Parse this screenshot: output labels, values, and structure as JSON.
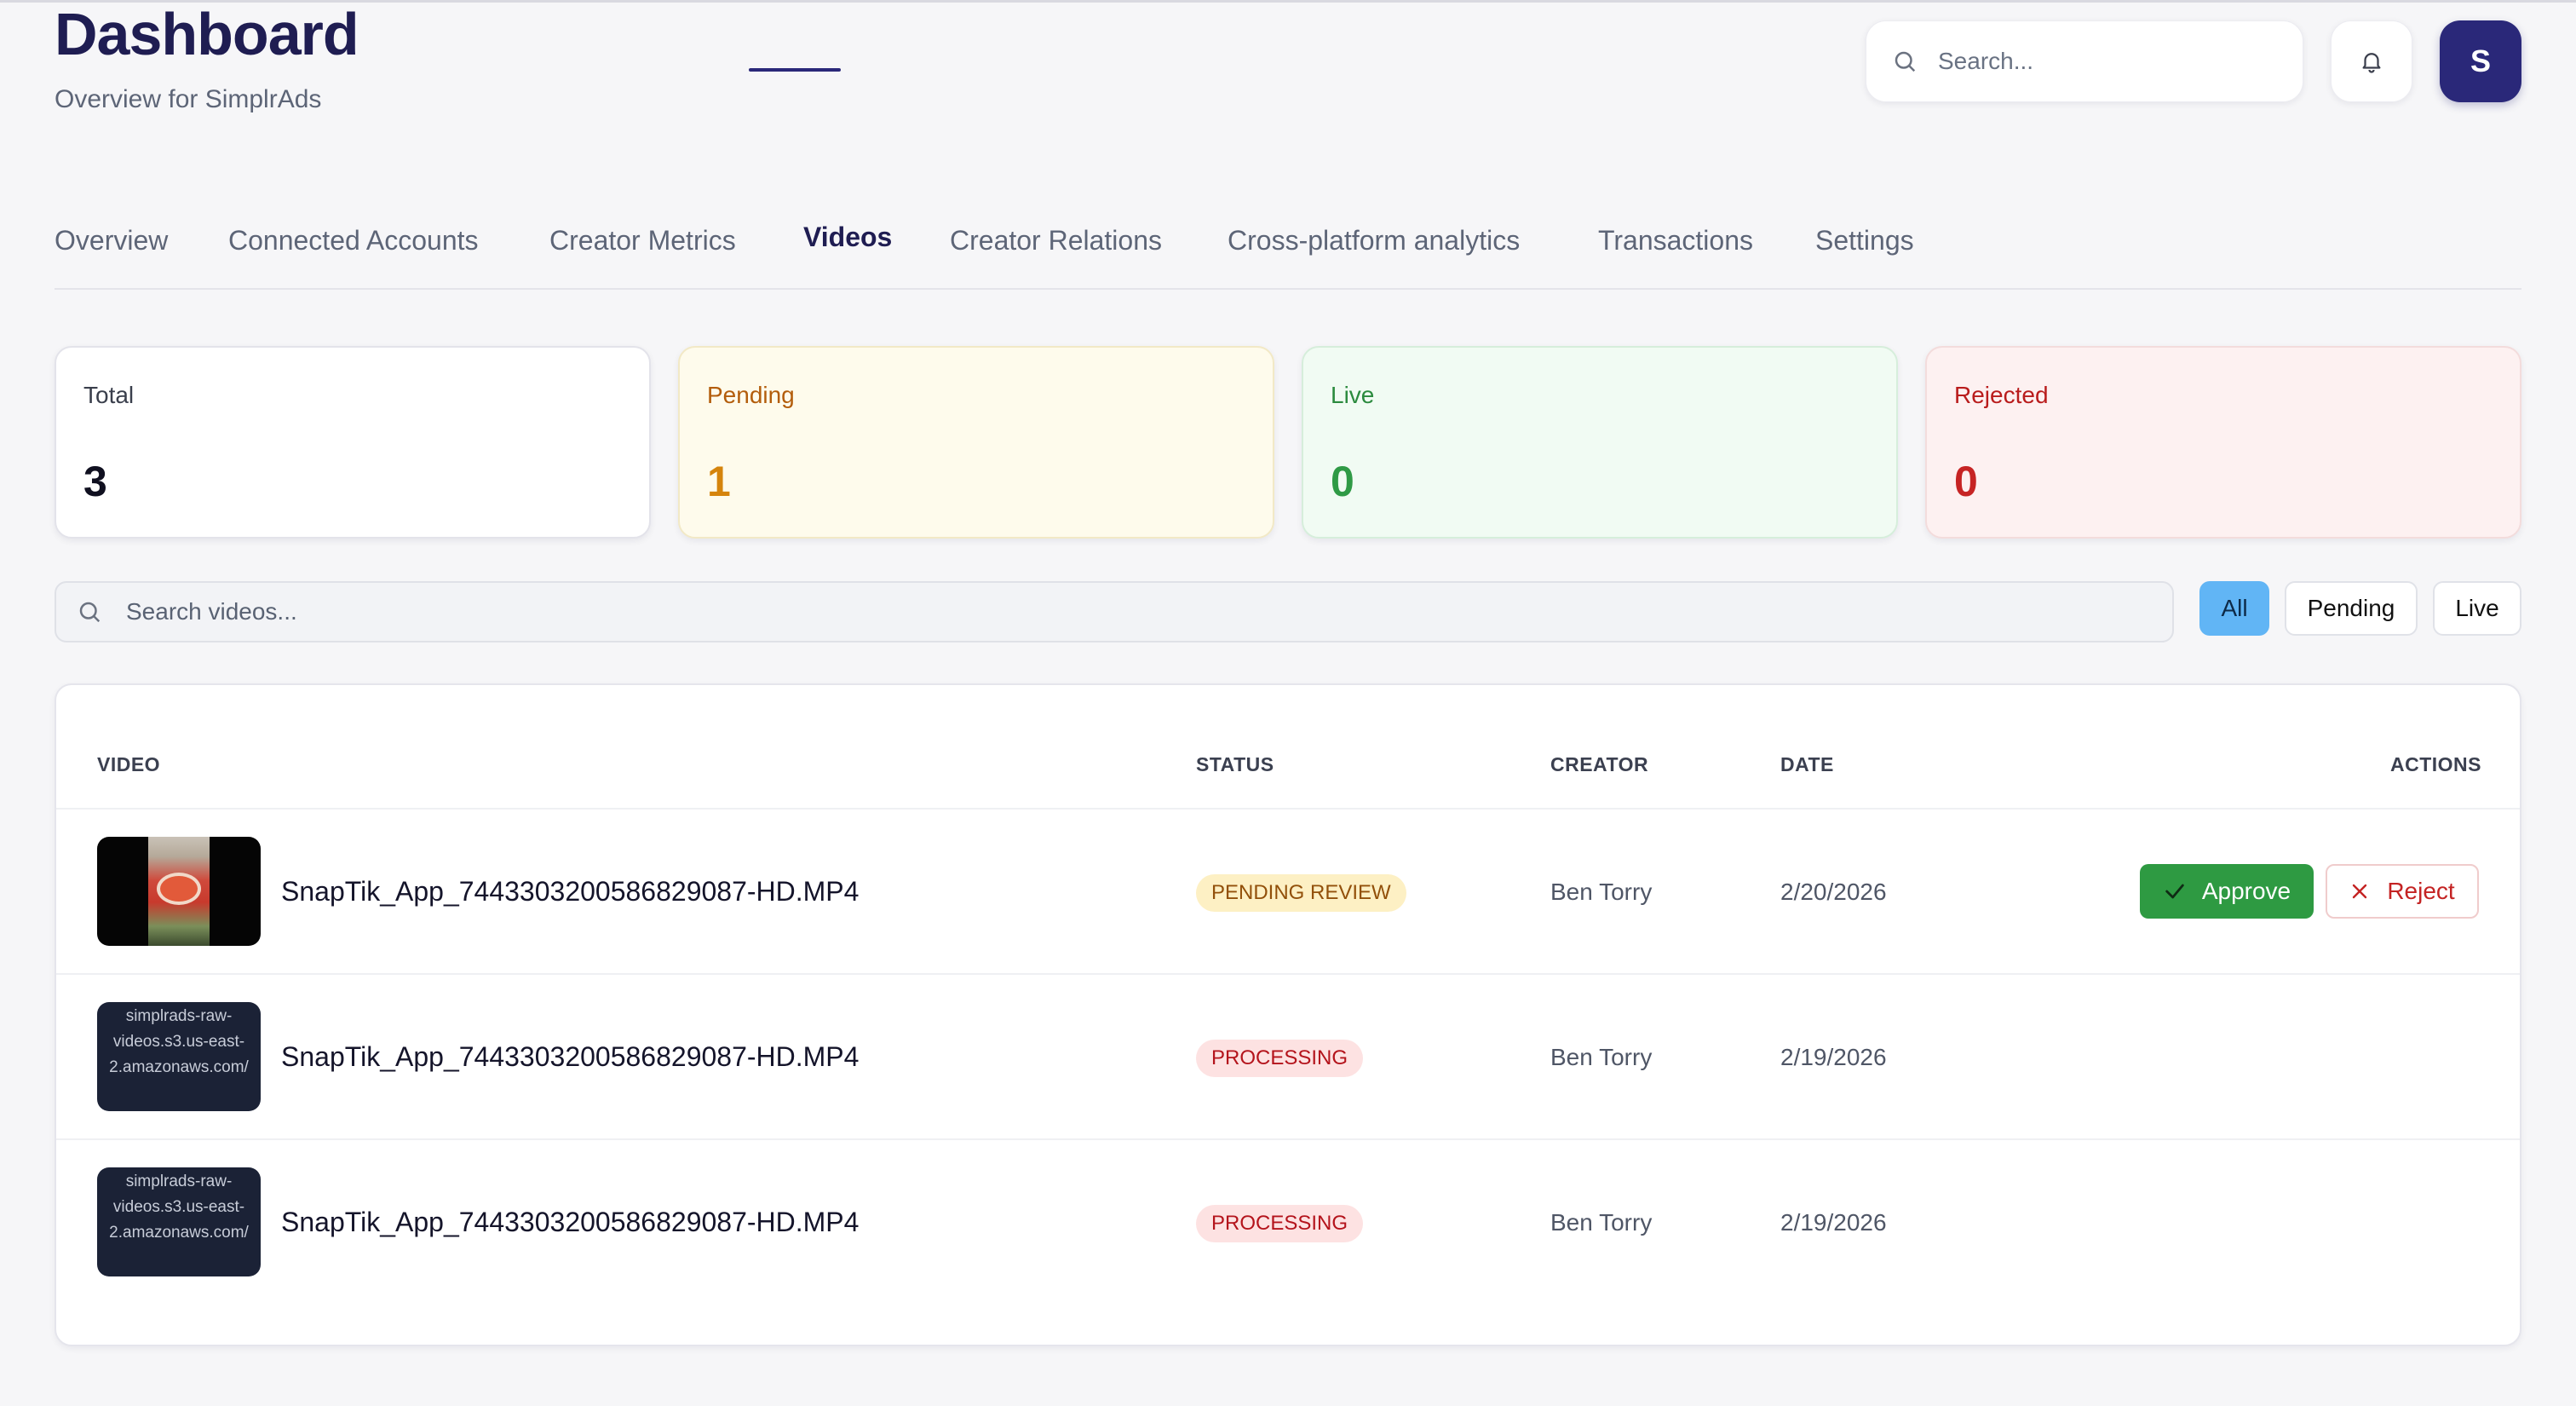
{
  "header": {
    "title": "Dashboard",
    "subtitle": "Overview for SimplrAds",
    "search_placeholder": "Search...",
    "avatar_initial": "S"
  },
  "tabs": [
    {
      "label": "Overview"
    },
    {
      "label": "Connected Accounts"
    },
    {
      "label": "Creator Metrics"
    },
    {
      "label": "Videos",
      "active": true
    },
    {
      "label": "Creator Relations"
    },
    {
      "label": "Cross-platform analytics"
    },
    {
      "label": "Transactions"
    },
    {
      "label": "Settings"
    }
  ],
  "stats": {
    "total": {
      "label": "Total",
      "value": "3"
    },
    "pending": {
      "label": "Pending",
      "value": "1"
    },
    "live": {
      "label": "Live",
      "value": "0"
    },
    "rejected": {
      "label": "Rejected",
      "value": "0"
    }
  },
  "video_search": {
    "placeholder": "Search videos..."
  },
  "filters": {
    "all": "All",
    "pending": "Pending",
    "live": "Live",
    "selected": "All"
  },
  "table": {
    "headers": {
      "video": "VIDEO",
      "status": "STATUS",
      "creator": "CREATOR",
      "date": "DATE",
      "actions": "ACTIONS"
    },
    "rows": [
      {
        "thumbnail_text": "",
        "filename": "SnapTik_App_7443303200586829087-HD.MP4",
        "status": "PENDING REVIEW",
        "creator": "Ben Torry",
        "date": "2/20/2026"
      },
      {
        "thumbnail_text": "simplrads-raw-videos.s3.us-east-2.amazonaws.com/",
        "filename": "SnapTik_App_7443303200586829087-HD.MP4",
        "status": "PROCESSING",
        "creator": "Ben Torry",
        "date": "2/19/2026"
      },
      {
        "thumbnail_text": "simplrads-raw-videos.s3.us-east-2.amazonaws.com/",
        "filename": "SnapTik_App_7443303200586829087-HD.MP4",
        "status": "PROCESSING",
        "creator": "Ben Torry",
        "date": "2/19/2026"
      }
    ],
    "approve_label": "Approve",
    "reject_label": "Reject"
  },
  "colors": {
    "brand": "#2a2879",
    "approve": "#2e9a42",
    "reject": "#c42323",
    "filter_active": "#61b5f5"
  }
}
